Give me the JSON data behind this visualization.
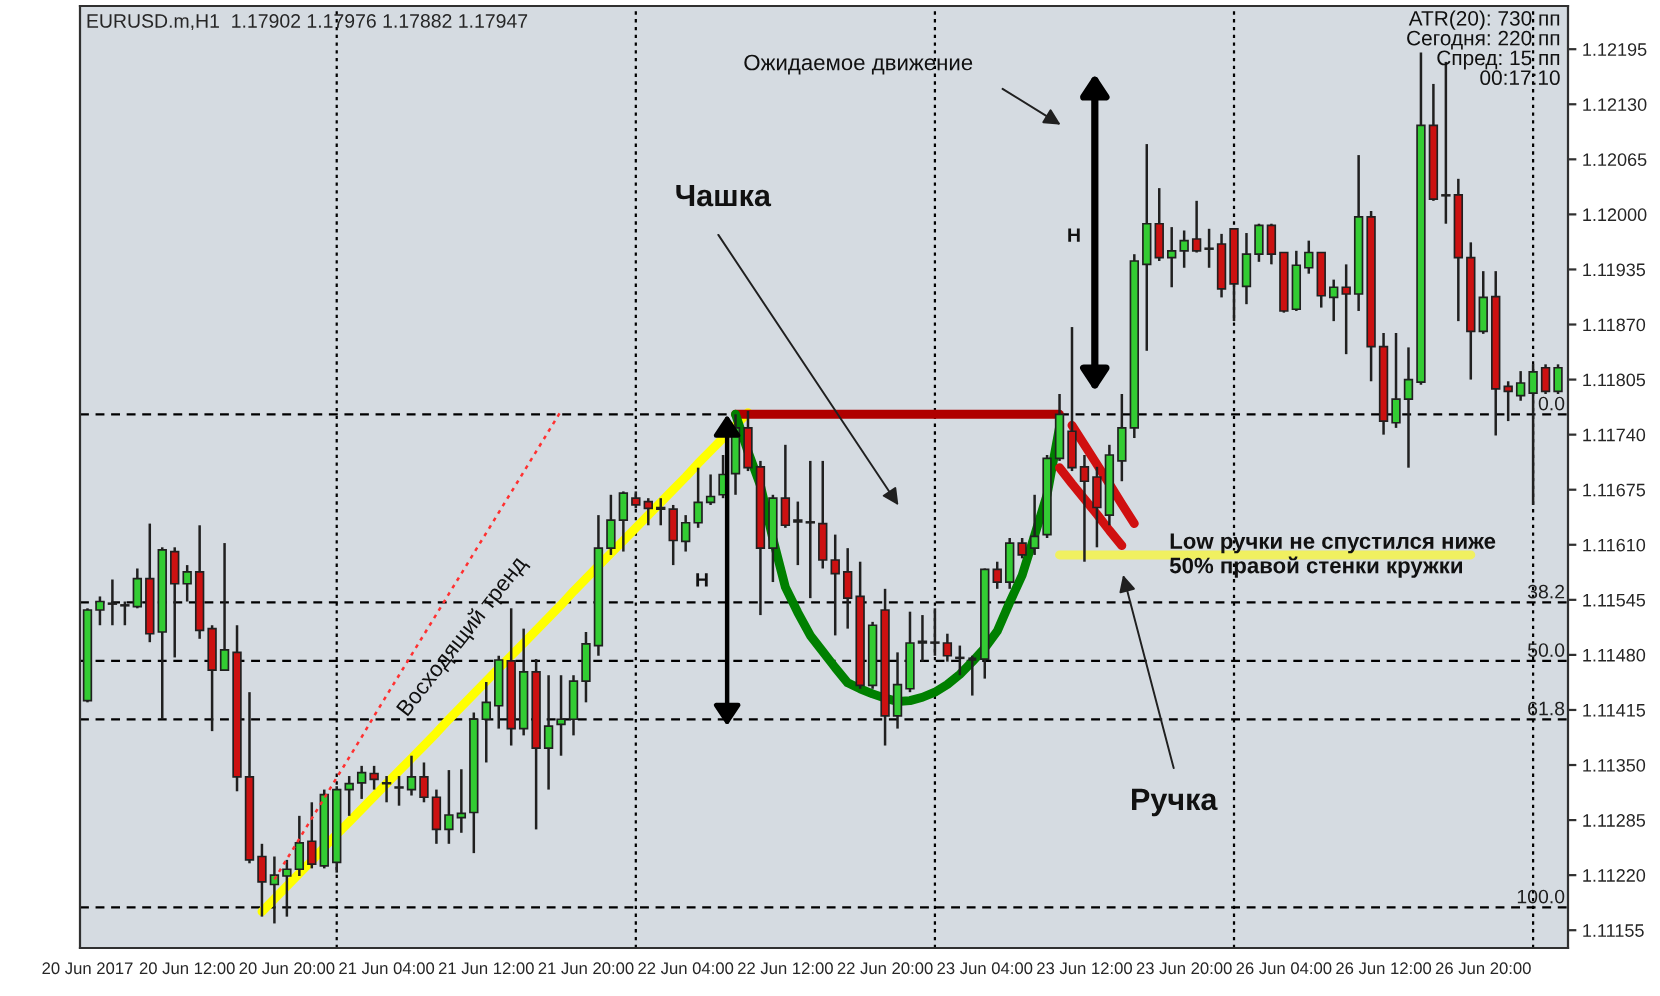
{
  "chart_data": {
    "type": "candlestick",
    "title": "EURUSD.m,H1  1.17902 1.17976 1.17882 1.17947",
    "categories": [
      "20 Jun 2017",
      null,
      null,
      null,
      null,
      null,
      null,
      null,
      "20 Jun 12:00",
      null,
      null,
      null,
      null,
      null,
      null,
      null,
      "20 Jun 20:00",
      null,
      null,
      null,
      null,
      null,
      null,
      null,
      "21 Jun 04:00",
      null,
      null,
      null,
      null,
      null,
      null,
      null,
      "21 Jun 12:00",
      null,
      null,
      null,
      null,
      null,
      null,
      null,
      "21 Jun 20:00",
      null,
      null,
      null,
      null,
      null,
      null,
      null,
      "22 Jun 04:00",
      null,
      null,
      null,
      null,
      null,
      null,
      null,
      "22 Jun 12:00",
      null,
      null,
      null,
      null,
      null,
      null,
      null,
      "22 Jun 20:00",
      null,
      null,
      null,
      null,
      null,
      null,
      null,
      "23 Jun 04:00",
      null,
      null,
      null,
      null,
      null,
      null,
      null,
      "23 Jun 12:00",
      null,
      null,
      null,
      null,
      null,
      null,
      null,
      "23 Jun 20:00",
      null,
      null,
      null,
      null,
      null,
      null,
      null,
      "26 Jun 04:00",
      null,
      null,
      null,
      null,
      null,
      null,
      null,
      "26 Jun 12:00",
      null,
      null,
      null,
      null,
      null,
      null,
      null,
      "26 Jun 20:00",
      null,
      null,
      null,
      null,
      null,
      null
    ],
    "ohlc": [
      [
        1.11426,
        1.11535,
        1.11424,
        1.11533
      ],
      [
        1.11533,
        1.11549,
        1.11515,
        1.11543
      ],
      [
        1.11541,
        1.11569,
        1.11515,
        1.1154
      ],
      [
        1.11539,
        1.11543,
        1.11515,
        1.11538
      ],
      [
        1.11537,
        1.11582,
        1.11535,
        1.1157
      ],
      [
        1.1157,
        1.11635,
        1.11495,
        1.11505
      ],
      [
        1.11507,
        1.11607,
        1.11404,
        1.11604
      ],
      [
        1.11602,
        1.11607,
        1.11477,
        1.11564
      ],
      [
        1.11564,
        1.11586,
        1.11543,
        1.11578
      ],
      [
        1.11578,
        1.11633,
        1.11499,
        1.11509
      ],
      [
        1.11511,
        1.11515,
        1.1139,
        1.11462
      ],
      [
        1.11462,
        1.11612,
        1.11462,
        1.11486
      ],
      [
        1.11483,
        1.11515,
        1.11319,
        1.11336
      ],
      [
        1.11336,
        1.11436,
        1.11234,
        1.11238
      ],
      [
        1.11242,
        1.11257,
        1.11171,
        1.11212
      ],
      [
        1.11209,
        1.11242,
        1.11163,
        1.1122
      ],
      [
        1.11219,
        1.11238,
        1.11171,
        1.11227
      ],
      [
        1.11227,
        1.1129,
        1.11219,
        1.11258
      ],
      [
        1.1126,
        1.11306,
        1.11228,
        1.11233
      ],
      [
        1.11231,
        1.11321,
        1.11228,
        1.11315
      ],
      [
        1.11235,
        1.11325,
        1.11223,
        1.11321
      ],
      [
        1.11321,
        1.11337,
        1.1129,
        1.11328
      ],
      [
        1.11329,
        1.11349,
        1.1131,
        1.11341
      ],
      [
        1.1134,
        1.11349,
        1.11321,
        1.11333
      ],
      [
        1.11329,
        1.11337,
        1.11306,
        1.11328
      ],
      [
        1.11324,
        1.11337,
        1.11302,
        1.11323
      ],
      [
        1.11321,
        1.11361,
        1.11314,
        1.11336
      ],
      [
        1.11336,
        1.11353,
        1.11306,
        1.11312
      ],
      [
        1.11312,
        1.11321,
        1.11257,
        1.11274
      ],
      [
        1.11274,
        1.11344,
        1.11257,
        1.11291
      ],
      [
        1.11288,
        1.11345,
        1.1127,
        1.11293
      ],
      [
        1.11294,
        1.11412,
        1.11246,
        1.11404
      ],
      [
        1.11404,
        1.11448,
        1.11353,
        1.11424
      ],
      [
        1.1142,
        1.11479,
        1.11393,
        1.11474
      ],
      [
        1.11473,
        1.11535,
        1.11373,
        1.11393
      ],
      [
        1.11393,
        1.11511,
        1.11385,
        1.1146
      ],
      [
        1.1146,
        1.11475,
        1.11274,
        1.1137
      ],
      [
        1.1137,
        1.11456,
        1.11321,
        1.11396
      ],
      [
        1.11398,
        1.11456,
        1.11361,
        1.11404
      ],
      [
        1.11404,
        1.11456,
        1.11385,
        1.11449
      ],
      [
        1.11449,
        1.11507,
        1.11424,
        1.11493
      ],
      [
        1.11491,
        1.11645,
        1.11479,
        1.11606
      ],
      [
        1.11606,
        1.11669,
        1.11598,
        1.11639
      ],
      [
        1.11639,
        1.11673,
        1.11602,
        1.11671
      ],
      [
        1.11665,
        1.11673,
        1.11653,
        1.11657
      ],
      [
        1.11661,
        1.11665,
        1.11633,
        1.11653
      ],
      [
        1.11654,
        1.11665,
        1.11633,
        1.11652
      ],
      [
        1.11652,
        1.11657,
        1.11586,
        1.11615
      ],
      [
        1.11614,
        1.11645,
        1.11602,
        1.11636
      ],
      [
        1.11636,
        1.11701,
        1.1163,
        1.1166
      ],
      [
        1.1166,
        1.11693,
        1.11657,
        1.11667
      ],
      [
        1.11669,
        1.11716,
        1.11665,
        1.11693
      ],
      [
        1.11694,
        1.11764,
        1.11669,
        1.11748
      ],
      [
        1.11748,
        1.11768,
        1.11697,
        1.11701
      ],
      [
        1.11702,
        1.11709,
        1.11527,
        1.11606
      ],
      [
        1.11606,
        1.11669,
        1.11566,
        1.11665
      ],
      [
        1.11665,
        1.11728,
        1.1163,
        1.11633
      ],
      [
        1.11639,
        1.11661,
        1.11586,
        1.11637
      ],
      [
        1.11636,
        1.11709,
        1.11547,
        1.11637
      ],
      [
        1.11635,
        1.11709,
        1.11582,
        1.11592
      ],
      [
        1.11592,
        1.11622,
        1.11503,
        1.11576
      ],
      [
        1.11578,
        1.11606,
        1.11511,
        1.11547
      ],
      [
        1.11549,
        1.1159,
        1.1144,
        1.11444
      ],
      [
        1.11444,
        1.11519,
        1.1144,
        1.11515
      ],
      [
        1.11533,
        1.11558,
        1.11373,
        1.11408
      ],
      [
        1.11408,
        1.11483,
        1.11393,
        1.11445
      ],
      [
        1.1144,
        1.11531,
        1.11436,
        1.11494
      ],
      [
        1.11494,
        1.11527,
        1.11472,
        1.11496
      ],
      [
        1.11495,
        1.11535,
        1.11479,
        1.11494
      ],
      [
        1.11494,
        1.11505,
        1.11472,
        1.11479
      ],
      [
        1.11477,
        1.11491,
        1.11456,
        1.11476
      ],
      [
        1.11475,
        1.11479,
        1.11432,
        1.11475
      ],
      [
        1.11475,
        1.11582,
        1.11452,
        1.11581
      ],
      [
        1.11581,
        1.1159,
        1.11558,
        1.11566
      ],
      [
        1.11566,
        1.11618,
        1.11558,
        1.11612
      ],
      [
        1.11612,
        1.11618,
        1.11594,
        1.11598
      ],
      [
        1.11606,
        1.11669,
        1.11598,
        1.1162
      ],
      [
        1.11622,
        1.11716,
        1.11618,
        1.11712
      ],
      [
        1.11712,
        1.11788,
        1.11709,
        1.11764
      ],
      [
        1.11744,
        1.11867,
        1.11697,
        1.11701
      ],
      [
        1.11702,
        1.11716,
        1.1159,
        1.11685
      ],
      [
        1.1169,
        1.11702,
        1.11607,
        1.11654
      ],
      [
        1.11645,
        1.11728,
        1.11633,
        1.11716
      ],
      [
        1.11709,
        1.11788,
        1.11685,
        1.11748
      ],
      [
        1.11748,
        1.11953,
        1.11736,
        1.11945
      ],
      [
        1.11941,
        1.12083,
        1.11839,
        1.11989
      ],
      [
        1.11989,
        1.12031,
        1.11945,
        1.11949
      ],
      [
        1.11949,
        1.11985,
        1.11914,
        1.11957
      ],
      [
        1.11957,
        1.11981,
        1.11937,
        1.11969
      ],
      [
        1.11971,
        1.12016,
        1.11955,
        1.11957
      ],
      [
        1.1196,
        1.11983,
        1.11937,
        1.11959
      ],
      [
        1.11965,
        1.11977,
        1.11902,
        1.11912
      ],
      [
        1.11983,
        1.11983,
        1.11874,
        1.11918
      ],
      [
        1.11915,
        1.11978,
        1.11894,
        1.11953
      ],
      [
        1.11953,
        1.11989,
        1.11944,
        1.11987
      ],
      [
        1.11987,
        1.11989,
        1.11941,
        1.11953
      ],
      [
        1.11955,
        1.11955,
        1.11884,
        1.11886
      ],
      [
        1.11888,
        1.11957,
        1.11886,
        1.1194
      ],
      [
        1.11937,
        1.11969,
        1.1193,
        1.11955
      ],
      [
        1.11955,
        1.11955,
        1.1189,
        1.11904
      ],
      [
        1.11902,
        1.11923,
        1.11874,
        1.11914
      ],
      [
        1.11914,
        1.11941,
        1.11835,
        1.11906
      ],
      [
        1.11906,
        1.1207,
        1.11886,
        1.11997
      ],
      [
        1.11997,
        1.12004,
        1.11803,
        1.11844
      ],
      [
        1.11844,
        1.1186,
        1.1174,
        1.11756
      ],
      [
        1.11754,
        1.1186,
        1.11748,
        1.11782
      ],
      [
        1.11782,
        1.11843,
        1.11701,
        1.11805
      ],
      [
        1.11802,
        1.12191,
        1.11799,
        1.12105
      ],
      [
        1.12105,
        1.12154,
        1.12016,
        1.12018
      ],
      [
        1.12023,
        1.1218,
        1.11989,
        1.12022
      ],
      [
        1.12023,
        1.12042,
        1.11874,
        1.11949
      ],
      [
        1.11949,
        1.11967,
        1.11805,
        1.11862
      ],
      [
        1.11862,
        1.11933,
        1.11859,
        1.11902
      ],
      [
        1.11903,
        1.11933,
        1.11739,
        1.11794
      ],
      [
        1.11797,
        1.11803,
        1.11756,
        1.11791
      ],
      [
        1.11786,
        1.11815,
        1.1178,
        1.11801
      ],
      [
        1.11789,
        1.11823,
        1.11657,
        1.11814
      ],
      [
        1.11819,
        1.11823,
        1.11788,
        1.11791
      ],
      [
        1.11791,
        1.11823,
        1.11788,
        1.11819
      ]
    ],
    "series": [
      {
        "type": "line",
        "color": "#ffff00",
        "line_style": "solid",
        "values": [
          null,
          null,
          null,
          null,
          null,
          null,
          null,
          null,
          null,
          null,
          null,
          null,
          null,
          null,
          1.11177,
          1.11192,
          1.11207,
          1.11222,
          1.11237,
          1.11253,
          1.11268,
          1.11283,
          1.11298,
          1.11313,
          1.11328,
          1.11343,
          1.11358,
          1.11373,
          1.11388,
          1.11404,
          1.11419,
          1.11434,
          1.11449,
          1.11464,
          1.11479,
          1.11494,
          1.11509,
          1.11524,
          1.11539,
          1.11555,
          1.1157,
          1.11585,
          1.116,
          1.11615,
          1.1163,
          1.11645,
          1.1166,
          1.11675,
          1.1169,
          1.11706,
          1.11721,
          1.11736,
          1.11751,
          1.11766,
          null,
          null,
          null,
          null,
          null,
          null,
          null,
          null,
          null,
          null,
          null,
          null,
          null,
          null,
          null,
          null,
          null,
          null,
          null,
          null,
          null,
          null,
          null,
          null,
          null,
          null,
          null,
          null,
          null,
          null,
          null,
          null,
          null,
          null,
          null,
          null,
          null,
          null,
          null,
          null,
          null,
          null,
          null,
          null,
          null,
          null,
          null,
          null,
          null,
          null,
          null,
          null,
          null,
          null,
          null,
          null,
          null,
          null,
          null,
          null,
          null,
          null,
          null,
          null,
          null
        ]
      },
      {
        "type": "line",
        "color": "#ff3030",
        "line_style": "dotted",
        "values": [
          null,
          null,
          null,
          null,
          null,
          null,
          null,
          null,
          null,
          null,
          null,
          null,
          null,
          null,
          null,
          1.11215,
          1.11239,
          1.11263,
          1.11287,
          1.11311,
          1.11335,
          1.11359,
          1.11383,
          1.11408,
          1.11432,
          1.11456,
          1.1148,
          1.11504,
          1.11528,
          1.11552,
          1.11576,
          1.116,
          1.11624,
          1.11648,
          1.11672,
          1.11696,
          1.1172,
          1.11744,
          1.11768,
          null,
          null,
          null,
          null,
          null,
          null,
          null,
          null,
          null,
          null,
          null,
          null,
          null,
          null,
          null,
          null,
          null,
          null,
          null,
          null,
          null,
          null,
          null,
          null,
          null,
          null,
          null,
          null,
          null,
          null,
          null,
          null,
          null,
          null,
          null,
          null,
          null,
          null,
          null,
          null,
          null,
          null,
          null,
          null,
          null,
          null,
          null,
          null,
          null,
          null,
          null,
          null,
          null,
          null,
          null,
          null,
          null,
          null,
          null,
          null,
          null,
          null,
          null,
          null,
          null,
          null,
          null,
          null,
          null,
          null,
          null,
          null,
          null,
          null,
          null,
          null,
          null,
          null,
          null,
          null
        ]
      },
      {
        "type": "line",
        "color": "#b00000",
        "line_style": "solid",
        "values": [
          null,
          null,
          null,
          null,
          null,
          null,
          null,
          null,
          null,
          null,
          null,
          null,
          null,
          null,
          null,
          null,
          null,
          null,
          null,
          null,
          null,
          null,
          null,
          null,
          null,
          null,
          null,
          null,
          null,
          null,
          null,
          null,
          null,
          null,
          null,
          null,
          null,
          null,
          null,
          null,
          null,
          null,
          null,
          null,
          null,
          null,
          null,
          null,
          null,
          null,
          null,
          null,
          1.11764,
          1.11764,
          1.11764,
          1.11764,
          1.11764,
          1.11764,
          1.11764,
          1.11764,
          1.11764,
          1.11764,
          1.11764,
          1.11764,
          1.11764,
          1.11764,
          1.11764,
          1.11764,
          1.11764,
          1.11764,
          1.11764,
          1.11764,
          1.11764,
          1.11764,
          1.11764,
          1.11764,
          1.11764,
          1.11764,
          1.11764,
          null,
          null,
          null,
          null,
          null,
          null,
          null,
          null,
          null,
          null,
          null,
          null,
          null,
          null,
          null,
          null,
          null,
          null,
          null,
          null,
          null,
          null,
          null,
          null,
          null,
          null,
          null,
          null,
          null,
          null,
          null,
          null,
          null,
          null,
          null,
          null,
          null,
          null,
          null,
          null
        ]
      },
      {
        "type": "line",
        "color": "#008000",
        "line_style": "solid",
        "values": [
          null,
          null,
          null,
          null,
          null,
          null,
          null,
          null,
          null,
          null,
          null,
          null,
          null,
          null,
          null,
          null,
          null,
          null,
          null,
          null,
          null,
          null,
          null,
          null,
          null,
          null,
          null,
          null,
          null,
          null,
          null,
          null,
          null,
          null,
          null,
          null,
          null,
          null,
          null,
          null,
          null,
          null,
          null,
          null,
          null,
          null,
          null,
          null,
          null,
          null,
          null,
          null,
          1.11764,
          1.1172,
          1.1168,
          1.11617,
          1.1156,
          1.1153,
          1.11503,
          1.11484,
          1.11465,
          1.11447,
          1.1144,
          1.11434,
          1.11429,
          1.11425,
          1.11426,
          1.1143,
          1.11436,
          1.11445,
          1.11457,
          1.11472,
          1.11488,
          1.11508,
          1.11542,
          1.11574,
          1.11621,
          1.11669,
          1.11749,
          null,
          null,
          null,
          null,
          null,
          null,
          null,
          null,
          null,
          null,
          null,
          null,
          null,
          null,
          null,
          null,
          null,
          null,
          null,
          null,
          null,
          null,
          null,
          null,
          null,
          null,
          null,
          null,
          null,
          null,
          null,
          null,
          null,
          null,
          null,
          null,
          null,
          null,
          null,
          null
        ]
      },
      {
        "type": "line",
        "color": "#d01010",
        "line_style": "solid",
        "values": [
          null,
          null,
          null,
          null,
          null,
          null,
          null,
          null,
          null,
          null,
          null,
          null,
          null,
          null,
          null,
          null,
          null,
          null,
          null,
          null,
          null,
          null,
          null,
          null,
          null,
          null,
          null,
          null,
          null,
          null,
          null,
          null,
          null,
          null,
          null,
          null,
          null,
          null,
          null,
          null,
          null,
          null,
          null,
          null,
          null,
          null,
          null,
          null,
          null,
          null,
          null,
          null,
          null,
          null,
          null,
          null,
          null,
          null,
          null,
          null,
          null,
          null,
          null,
          null,
          null,
          null,
          null,
          null,
          null,
          null,
          null,
          null,
          null,
          null,
          null,
          null,
          null,
          null,
          null,
          1.11751,
          1.11728,
          1.11705,
          1.11682,
          1.11658,
          1.11635,
          null,
          null,
          null,
          null,
          null,
          null,
          null,
          null,
          null,
          null,
          null,
          null,
          null,
          null,
          null,
          null,
          null,
          null,
          null,
          null,
          null,
          null,
          null,
          null,
          null,
          null,
          null,
          null,
          null,
          null,
          null,
          null,
          null,
          null
        ]
      },
      {
        "type": "line",
        "color": "#d01010",
        "line_style": "solid",
        "values": [
          null,
          null,
          null,
          null,
          null,
          null,
          null,
          null,
          null,
          null,
          null,
          null,
          null,
          null,
          null,
          null,
          null,
          null,
          null,
          null,
          null,
          null,
          null,
          null,
          null,
          null,
          null,
          null,
          null,
          null,
          null,
          null,
          null,
          null,
          null,
          null,
          null,
          null,
          null,
          null,
          null,
          null,
          null,
          null,
          null,
          null,
          null,
          null,
          null,
          null,
          null,
          null,
          null,
          null,
          null,
          null,
          null,
          null,
          null,
          null,
          null,
          null,
          null,
          null,
          null,
          null,
          null,
          null,
          null,
          null,
          null,
          null,
          null,
          null,
          null,
          null,
          null,
          null,
          1.11701,
          1.11682,
          1.11664,
          1.11646,
          1.11627,
          1.11609,
          null,
          null,
          null,
          null,
          null,
          null,
          null,
          null,
          null,
          null,
          null,
          null,
          null,
          null,
          null,
          null,
          null,
          null,
          null,
          null,
          null,
          null,
          null,
          null,
          null,
          null,
          null,
          null,
          null,
          null,
          null,
          null,
          null,
          null,
          null
        ]
      },
      {
        "type": "line",
        "color": "#f0f060",
        "line_style": "solid",
        "values": [
          null,
          null,
          null,
          null,
          null,
          null,
          null,
          null,
          null,
          null,
          null,
          null,
          null,
          null,
          null,
          null,
          null,
          null,
          null,
          null,
          null,
          null,
          null,
          null,
          null,
          null,
          null,
          null,
          null,
          null,
          null,
          null,
          null,
          null,
          null,
          null,
          null,
          null,
          null,
          null,
          null,
          null,
          null,
          null,
          null,
          null,
          null,
          null,
          null,
          null,
          null,
          null,
          null,
          null,
          null,
          null,
          null,
          null,
          null,
          null,
          null,
          null,
          null,
          null,
          null,
          null,
          null,
          null,
          null,
          null,
          null,
          null,
          null,
          null,
          null,
          null,
          null,
          null,
          1.11598,
          1.11598,
          1.11598,
          1.11598,
          1.11598,
          1.11598,
          1.11598,
          1.11598,
          1.11598,
          1.11598,
          1.11598,
          1.11598,
          1.11598,
          1.11598,
          1.11598,
          1.11598,
          1.11598,
          1.11598,
          1.11598,
          1.11598,
          1.11598,
          1.11598,
          1.11598,
          1.11598,
          1.11598,
          1.11598,
          1.11598,
          1.11598,
          1.11598,
          1.11598,
          1.11598,
          1.11598,
          1.11598,
          1.11598,
          null,
          null,
          null,
          null,
          null,
          null,
          null
        ]
      }
    ],
    "ref_lines": [
      {
        "axis": "y",
        "value": 1.11764,
        "color": "#000000",
        "line_style": "dashed"
      },
      {
        "axis": "y",
        "value": 1.11542,
        "color": "#000000",
        "line_style": "dashed"
      },
      {
        "axis": "y",
        "value": 1.11473,
        "color": "#000000",
        "line_style": "dashed"
      },
      {
        "axis": "y",
        "value": 1.11404,
        "color": "#000000",
        "line_style": "dashed"
      },
      {
        "axis": "y",
        "value": 1.11182,
        "color": "#000000",
        "line_style": "dashed"
      }
    ],
    "annotations": [
      "Ожидаемое движение",
      "Чашка",
      "Восходящий тренд",
      "H",
      "H",
      "Low ручки не спустился ниже\n50% правой стенки кружки",
      "Ручка",
      "ATR(20): 730 пп",
      "Сегодня: 220 пп",
      "Спред: 15 пп",
      "00:17:10",
      "0.0",
      "38.2",
      "50.0",
      "61.8",
      "100.0"
    ],
    "ylim": [
      1.11134,
      1.12246
    ],
    "yticks": [
      {
        "value": 1.11155,
        "label": "1.11155"
      },
      {
        "value": 1.1122,
        "label": "1.11220"
      },
      {
        "value": 1.11285,
        "label": "1.11285"
      },
      {
        "value": 1.1135,
        "label": "1.11350"
      },
      {
        "value": 1.11415,
        "label": "1.11415"
      },
      {
        "value": 1.1148,
        "label": "1.11480"
      },
      {
        "value": 1.11545,
        "label": "1.11545"
      },
      {
        "value": 1.1161,
        "label": "1.11610"
      },
      {
        "value": 1.11675,
        "label": "1.11675"
      },
      {
        "value": 1.1174,
        "label": "1.11740"
      },
      {
        "value": 1.11805,
        "label": "1.11805"
      },
      {
        "value": 1.1187,
        "label": "1.11870"
      },
      {
        "value": 1.11935,
        "label": "1.11935"
      },
      {
        "value": 1.12,
        "label": "1.12000"
      },
      {
        "value": 1.12065,
        "label": "1.12065"
      },
      {
        "value": 1.1213,
        "label": "1.12130"
      },
      {
        "value": 1.12195,
        "label": "1.12195"
      }
    ]
  }
}
